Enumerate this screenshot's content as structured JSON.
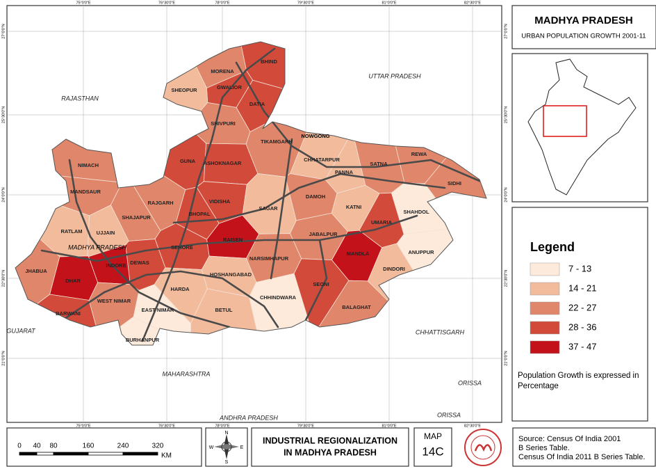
{
  "header": {
    "title": "MADHYA PRADESH",
    "subtitle": "URBAN POPULATION GROWTH 2001-11"
  },
  "map": {
    "districts": [
      {
        "label": "MORENA",
        "color": "#e0866a"
      },
      {
        "label": "BHIND",
        "color": "#d24a3a"
      },
      {
        "label": "GWALIOR",
        "color": "#d24a3a"
      },
      {
        "label": "DATIA",
        "color": "#d24a3a"
      },
      {
        "label": "SHEOPUR",
        "color": "#f1bb9c"
      },
      {
        "label": "SHIVPURI",
        "color": "#e0866a"
      },
      {
        "label": "GUNA",
        "color": "#d24a3a"
      },
      {
        "label": "ASHOKNAGAR",
        "color": "#d24a3a"
      },
      {
        "label": "TIKAMGARH",
        "color": "#e0866a"
      },
      {
        "label": "CHHATARPUR",
        "color": "#f1bb9c"
      },
      {
        "label": "PANNA",
        "color": "#f1bb9c"
      },
      {
        "label": "SATNA",
        "color": "#e0866a"
      },
      {
        "label": "REWA",
        "color": "#e0866a"
      },
      {
        "label": "SIDHI",
        "color": "#e0866a"
      },
      {
        "label": "NIMACH",
        "color": "#e0866a"
      },
      {
        "label": "MANDSAUR",
        "color": "#e0866a"
      },
      {
        "label": "RATLAM",
        "color": "#f1bb9c"
      },
      {
        "label": "UJJAIN",
        "color": "#f1bb9c"
      },
      {
        "label": "SHAJAPUR",
        "color": "#e0866a"
      },
      {
        "label": "RAJGARH",
        "color": "#e0866a"
      },
      {
        "label": "VIDISHA",
        "color": "#d24a3a"
      },
      {
        "label": "BHOPAL",
        "color": "#d24a3a"
      },
      {
        "label": "SAGAR",
        "color": "#f1bb9c"
      },
      {
        "label": "DAMOH",
        "color": "#e0866a"
      },
      {
        "label": "KATNI",
        "color": "#f1bb9c"
      },
      {
        "label": "UMARIA",
        "color": "#d24a3a"
      },
      {
        "label": "SHAHDOL",
        "color": "#fdeadb"
      },
      {
        "label": "ANUPPUR",
        "color": "#fdeadb"
      },
      {
        "label": "DINDORI",
        "color": "#f1bb9c"
      },
      {
        "label": "MANDLA",
        "color": "#c4121b"
      },
      {
        "label": "JABALPUR",
        "color": "#e0866a"
      },
      {
        "label": "NARSIMHAPUR",
        "color": "#e0866a"
      },
      {
        "label": "RAISEN",
        "color": "#c4121b"
      },
      {
        "label": "SEHORE",
        "color": "#d24a3a"
      },
      {
        "label": "DEWAS",
        "color": "#d24a3a"
      },
      {
        "label": "INDORE",
        "color": "#c4121b"
      },
      {
        "label": "JHABUA",
        "color": "#e0866a"
      },
      {
        "label": "DHAR",
        "color": "#c4121b"
      },
      {
        "label": "BARWANI",
        "color": "#d24a3a"
      },
      {
        "label": "WEST NIMAR",
        "color": "#e0866a"
      },
      {
        "label": "EAST NIMAR",
        "color": "#fdeadb"
      },
      {
        "label": "HARDA",
        "color": "#f1bb9c"
      },
      {
        "label": "HOSHANGABAD",
        "color": "#f1bb9c"
      },
      {
        "label": "BETUL",
        "color": "#f1bb9c"
      },
      {
        "label": "CHHINDWARA",
        "color": "#fdeadb"
      },
      {
        "label": "SEONI",
        "color": "#d24a3a"
      },
      {
        "label": "BALAGHAT",
        "color": "#e0866a"
      },
      {
        "label": "BURHANPUR",
        "color": "#fdeadb"
      }
    ],
    "places": [
      "NOWGONG",
      "MADHYA PRADESH"
    ],
    "neighbors": [
      "RAJASTHAN",
      "UTTAR PRADESH",
      "CHHATTISGARH",
      "MAHARASHTRA",
      "GUJARAT",
      "ANDHRA PRADESH",
      "ORISSA",
      "ORISSA"
    ],
    "longitudes": [
      "75°0'0\"E",
      "76°30'0\"E",
      "78°0'0\"E",
      "79°30'0\"E",
      "81°0'0\"E",
      "82°30'0\"E"
    ],
    "latitudes": [
      "27°0'0\"N",
      "25°30'0\"N",
      "24°0'0\"N",
      "22°30'0\"N",
      "21°0'0\"N"
    ]
  },
  "legend": {
    "title": "Legend",
    "items": [
      {
        "label": "7 - 13",
        "color": "#fdeadb"
      },
      {
        "label": "14 - 21",
        "color": "#f1bb9c"
      },
      {
        "label": "22 - 27",
        "color": "#e0866a"
      },
      {
        "label": "28 - 36",
        "color": "#d24a3a"
      },
      {
        "label": "37 - 47",
        "color": "#c4121b"
      }
    ],
    "note": [
      "Population Growth is expressed in",
      "Percentage"
    ]
  },
  "scale": {
    "ticks": [
      "0",
      "40",
      "80",
      "160",
      "240",
      "320"
    ],
    "unit": "KM"
  },
  "compass": [
    "N",
    "E",
    "S",
    "W"
  ],
  "footer": {
    "title": [
      "INDUSTRIAL REGIONALIZATION",
      "IN MADHYA PRADESH"
    ],
    "map_label": "MAP",
    "map_number": "14C",
    "source": [
      "Source: Census Of India 2001",
      "B Series Table.",
      "Census Of India 2011 B Series Table."
    ]
  }
}
